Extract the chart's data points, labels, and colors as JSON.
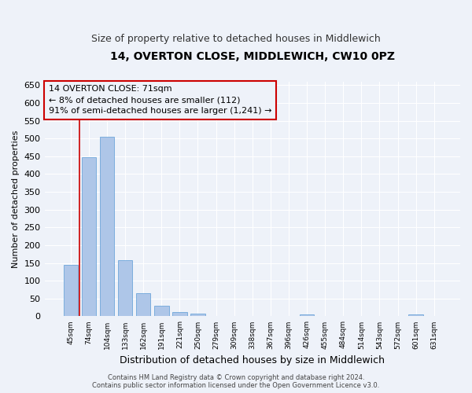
{
  "title": "14, OVERTON CLOSE, MIDDLEWICH, CW10 0PZ",
  "subtitle": "Size of property relative to detached houses in Middlewich",
  "xlabel": "Distribution of detached houses by size in Middlewich",
  "ylabel": "Number of detached properties",
  "footer_line1": "Contains HM Land Registry data © Crown copyright and database right 2024.",
  "footer_line2": "Contains public sector information licensed under the Open Government Licence v3.0.",
  "categories": [
    "45sqm",
    "74sqm",
    "104sqm",
    "133sqm",
    "162sqm",
    "191sqm",
    "221sqm",
    "250sqm",
    "279sqm",
    "309sqm",
    "338sqm",
    "367sqm",
    "396sqm",
    "426sqm",
    "455sqm",
    "484sqm",
    "514sqm",
    "543sqm",
    "572sqm",
    "601sqm",
    "631sqm"
  ],
  "values": [
    145,
    447,
    505,
    157,
    65,
    30,
    13,
    8,
    0,
    0,
    0,
    0,
    0,
    6,
    0,
    0,
    0,
    0,
    0,
    6,
    0
  ],
  "bar_color": "#aec6e8",
  "bar_edge_color": "#5b9bd5",
  "annotation_line1": "14 OVERTON CLOSE: 71sqm",
  "annotation_line2": "← 8% of detached houses are smaller (112)",
  "annotation_line3": "91% of semi-detached houses are larger (1,241) →",
  "annotation_box_color": "#cc0000",
  "ylim": [
    0,
    660
  ],
  "yticks": [
    0,
    50,
    100,
    150,
    200,
    250,
    300,
    350,
    400,
    450,
    500,
    550,
    600,
    650
  ],
  "bg_color": "#eef2f9",
  "plot_bg_color": "#eef2f9",
  "grid_color": "#ffffff",
  "title_fontsize": 10,
  "subtitle_fontsize": 9,
  "annotation_fontsize": 8,
  "ylabel_fontsize": 8,
  "xlabel_fontsize": 9,
  "xtick_fontsize": 6.5,
  "ytick_fontsize": 8
}
